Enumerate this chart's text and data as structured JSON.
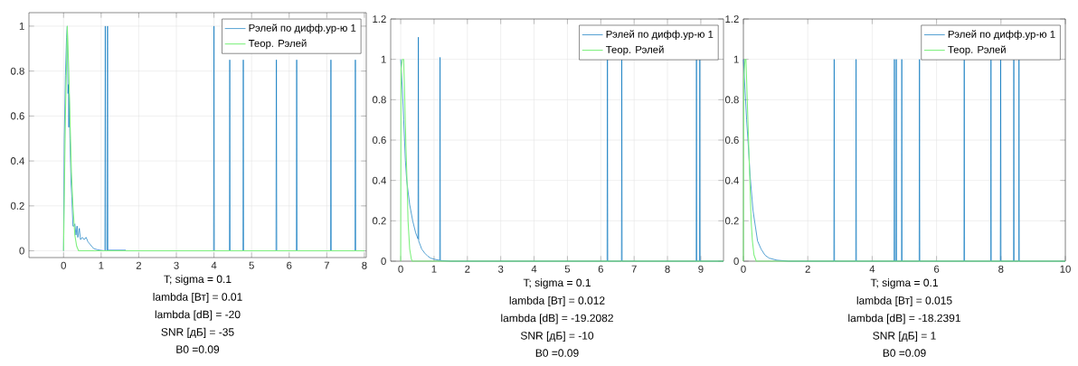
{
  "chart_data": [
    {
      "type": "line",
      "xlabel": "T; sigma = 0.1",
      "annotations": [
        "lambda [Вт] = 0.01",
        "lambda [dB] = -20",
        "SNR [дБ] = -35",
        "B0 =0.09"
      ],
      "xlim": [
        -0.92,
        8.05
      ],
      "ylim": [
        -0.03,
        1.06
      ],
      "xticks": [
        0,
        1,
        2,
        3,
        4,
        5,
        6,
        7,
        8
      ],
      "yticks": [
        0,
        0.2,
        0.4,
        0.6,
        0.8,
        1
      ],
      "grid": true,
      "legend": "top right",
      "series": [
        {
          "name": "Рэлей по дифф.ур-ю 1",
          "color": "#0072bd",
          "x": [
            0,
            0.02,
            0.05,
            0.08,
            0.1,
            0.12,
            0.13,
            0.14,
            0.15,
            0.17,
            0.2,
            0.22,
            0.25,
            0.28,
            0.3,
            0.33,
            0.36,
            0.38,
            0.42,
            0.45,
            0.5,
            0.55,
            0.6,
            0.65,
            0.7,
            0.8,
            0.9,
            1.0,
            1.1,
            1.11,
            1.12,
            1.16,
            1.17,
            1.18,
            1.65,
            1.66,
            3.99,
            4.0,
            4.01,
            4.41,
            4.419,
            4.42,
            4.421,
            4.43,
            4.77,
            4.779,
            4.78,
            4.781,
            4.79,
            5.65,
            5.659,
            5.66,
            5.661,
            5.67,
            6.19,
            6.199,
            6.2,
            6.201,
            6.21,
            7.1,
            7.109,
            7.11,
            7.111,
            7.12,
            7.75,
            7.759,
            7.76,
            7.761,
            7.77,
            8.0
          ],
          "values": [
            0,
            0.5,
            0.78,
            0.95,
            1,
            0.7,
            0.74,
            0.55,
            0.7,
            0.5,
            0.3,
            0.24,
            0.11,
            0.11,
            0.12,
            0.07,
            0.11,
            0.06,
            0.1,
            0.05,
            0.06,
            0.05,
            0.06,
            0.04,
            0.03,
            0.01,
            0.005,
            0.002,
            0,
            1,
            0,
            0,
            1,
            0.003,
            0.003,
            0,
            0,
            1,
            0,
            0,
            0.85,
            null,
            0.85,
            0,
            0,
            0.85,
            null,
            0.85,
            0,
            0,
            0.85,
            null,
            0.85,
            0,
            0,
            0.85,
            null,
            0.85,
            0,
            0,
            0.85,
            null,
            0.85,
            0,
            0,
            0.85,
            null,
            0.85,
            0,
            0
          ]
        },
        {
          "name": "Теор. Рэлей",
          "color": "#7df07d",
          "x": [
            0,
            0.05,
            0.1,
            0.14,
            0.17,
            0.21,
            0.25,
            0.3,
            0.35,
            0.4,
            8
          ],
          "values": [
            0,
            0.6,
            1,
            0.8,
            0.6,
            0.35,
            0.2,
            0.07,
            0.02,
            0,
            0
          ]
        }
      ]
    },
    {
      "type": "line",
      "xlabel": "T; sigma = 0.1",
      "annotations": [
        "lambda [Вт] = 0.012",
        "lambda [dB] = -19.2082",
        "SNR [дБ] = -10",
        "B0 =0.09"
      ],
      "xlim": [
        -0.3,
        9.68
      ],
      "ylim": [
        0,
        1.2
      ],
      "xticks": [
        0,
        1,
        2,
        3,
        4,
        5,
        6,
        7,
        8,
        9
      ],
      "yticks": [
        0,
        0.2,
        0.4,
        0.6,
        0.8,
        1,
        1.2
      ],
      "grid": true,
      "legend": "top right",
      "series": [
        {
          "name": "Рэлей по дифф.ур-ю 1",
          "color": "#0072bd",
          "x": [
            0,
            0.05,
            0.09,
            0.14,
            0.18,
            0.27,
            0.36,
            0.45,
            0.52,
            0.53,
            0.54,
            0.63,
            0.72,
            0.81,
            0.9,
            1.0,
            1.17,
            1.18,
            1.19,
            1.5,
            6.19,
            6.2,
            6.21,
            6.62,
            6.63,
            6.64,
            8.86,
            8.87,
            8.88,
            8.96,
            8.97,
            8.98,
            9.68
          ],
          "values": [
            1,
            0.85,
            0.7,
            0.5,
            0.4,
            0.28,
            0.2,
            0.14,
            0.11,
            1.11,
            0.1,
            0.06,
            0.04,
            0.025,
            0.015,
            0.01,
            0.004,
            1.01,
            0.003,
            0,
            0,
            1,
            0,
            0,
            1,
            0,
            0,
            1,
            0,
            0,
            1,
            0,
            0
          ]
        },
        {
          "name": "Теор. Рэлей",
          "color": "#7df07d",
          "x": [
            0,
            0.01,
            0.05,
            0.09,
            0.13,
            0.16,
            0.19,
            0.22,
            0.27,
            0.32,
            0.35,
            9.68
          ],
          "values": [
            0,
            0.95,
            1,
            1,
            0.75,
            0.55,
            0.4,
            0.2,
            0.06,
            0.01,
            0,
            0
          ]
        }
      ]
    },
    {
      "type": "line",
      "xlabel": "T; sigma = 0.1",
      "annotations": [
        "lambda [Вт] = 0.015",
        "lambda [dB] = -18.2391",
        "SNR [дБ] = 1",
        "B0 =0.09"
      ],
      "xlim": [
        0,
        10
      ],
      "ylim": [
        0,
        1.2
      ],
      "xticks": [
        0,
        2,
        4,
        6,
        8,
        10
      ],
      "yticks": [
        0,
        0.2,
        0.4,
        0.6,
        0.8,
        1,
        1.2
      ],
      "grid": true,
      "legend": "top right",
      "series": [
        {
          "name": "Рэлей по дифф.ур-ю 1",
          "color": "#0072bd",
          "x": [
            0,
            0.05,
            0.1,
            0.15,
            0.21,
            0.3,
            0.44,
            0.55,
            0.67,
            0.8,
            1.04,
            1.4,
            2.81,
            2.82,
            2.83,
            3.49,
            3.5,
            3.51,
            4.68,
            4.69,
            4.7,
            4.74,
            4.75,
            4.76,
            4.91,
            4.92,
            4.93,
            5.46,
            5.47,
            5.48,
            6.85,
            6.86,
            6.87,
            7.68,
            7.69,
            7.7,
            7.98,
            7.99,
            8.0,
            8.39,
            8.4,
            8.41,
            8.55,
            8.56,
            8.57,
            10
          ],
          "values": [
            1,
            0.85,
            0.7,
            0.58,
            0.42,
            0.25,
            0.1,
            0.06,
            0.03,
            0.015,
            0.005,
            0,
            0,
            1,
            0,
            0,
            1,
            0,
            0,
            1,
            0,
            0,
            1,
            0,
            0,
            1,
            0,
            0,
            1,
            0,
            0,
            1,
            0,
            0,
            1,
            0,
            0,
            1,
            0,
            0,
            1,
            0,
            0,
            1,
            0,
            0
          ]
        },
        {
          "name": "Теор. Рэлей",
          "color": "#7df07d",
          "x": [
            0,
            0.01,
            0.05,
            0.08,
            0.12,
            0.16,
            0.2,
            0.24,
            0.28,
            0.33,
            0.4,
            10
          ],
          "values": [
            0,
            0.9,
            1,
            1,
            0.8,
            0.6,
            0.4,
            0.2,
            0.1,
            0.03,
            0,
            0
          ]
        }
      ]
    }
  ]
}
